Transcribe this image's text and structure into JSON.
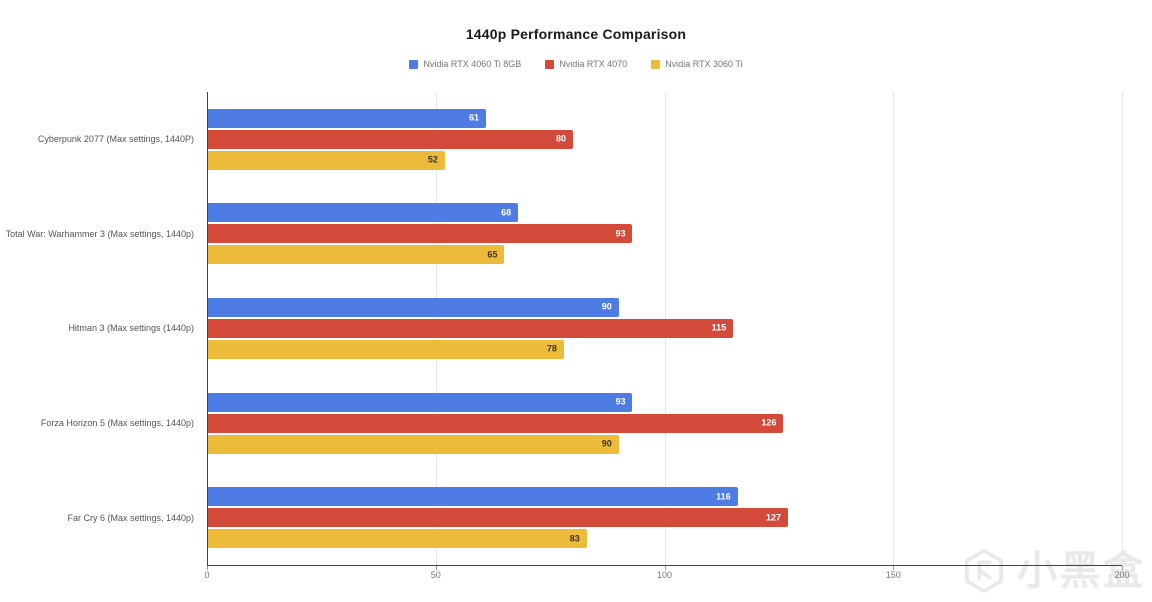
{
  "chart_data": {
    "type": "bar",
    "orientation": "horizontal",
    "title": "1440p Performance Comparison",
    "categories": [
      "Cyberpunk 2077 (Max settings, 1440P)",
      "Total War: Warhammer 3 (Max settings, 1440p)",
      "Hitman 3 (Max settings (1440p)",
      "Forza Horizon 5 (Max settings, 1440p)",
      "Far Cry 6 (Max settings, 1440p)"
    ],
    "series": [
      {
        "name": "Nvidia RTX 4060 Ti 8GB",
        "color": "#4e7ce4",
        "value_label_color": "#ffffff",
        "values": [
          61,
          68,
          90,
          93,
          116
        ]
      },
      {
        "name": "Nvidia RTX 4070",
        "color": "#d3493a",
        "value_label_color": "#ffffff",
        "values": [
          80,
          93,
          115,
          126,
          127
        ]
      },
      {
        "name": "Nvidia RTX 3060 Ti",
        "color": "#ecbb3a",
        "value_label_color": "#3d3322",
        "values": [
          52,
          65,
          78,
          90,
          83
        ]
      }
    ],
    "xlim": [
      0,
      200
    ],
    "xticks": [
      0,
      50,
      100,
      150,
      200
    ],
    "grid": true,
    "legend_position": "top",
    "axis_color": "#424242",
    "grid_color": "#e6e6e6"
  },
  "watermark": {
    "text": "小黑盒"
  }
}
